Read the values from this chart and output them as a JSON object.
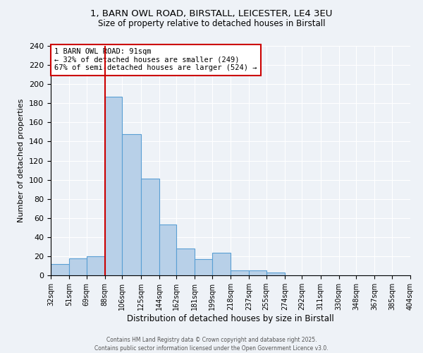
{
  "title": "1, BARN OWL ROAD, BIRSTALL, LEICESTER, LE4 3EU",
  "subtitle": "Size of property relative to detached houses in Birstall",
  "xlabel": "Distribution of detached houses by size in Birstall",
  "ylabel": "Number of detached properties",
  "bin_edges": [
    32,
    51,
    69,
    88,
    106,
    125,
    144,
    162,
    181,
    199,
    218,
    237,
    255,
    274,
    292,
    311,
    330,
    348,
    367,
    385,
    404
  ],
  "bar_heights": [
    12,
    18,
    20,
    187,
    148,
    101,
    53,
    28,
    17,
    24,
    5,
    5,
    3,
    0,
    0,
    0,
    0,
    0,
    0,
    0
  ],
  "bar_color": "#b8d0e8",
  "bar_edge_color": "#5a9fd4",
  "property_line_x": 88,
  "property_line_color": "#cc0000",
  "ylim": [
    0,
    240
  ],
  "yticks": [
    0,
    20,
    40,
    60,
    80,
    100,
    120,
    140,
    160,
    180,
    200,
    220,
    240
  ],
  "annotation_title": "1 BARN OWL ROAD: 91sqm",
  "annotation_line1": "← 32% of detached houses are smaller (249)",
  "annotation_line2": "67% of semi-detached houses are larger (524) →",
  "footer_line1": "Contains HM Land Registry data © Crown copyright and database right 2025.",
  "footer_line2": "Contains public sector information licensed under the Open Government Licence v3.0.",
  "background_color": "#eef2f7",
  "grid_color": "#ffffff"
}
